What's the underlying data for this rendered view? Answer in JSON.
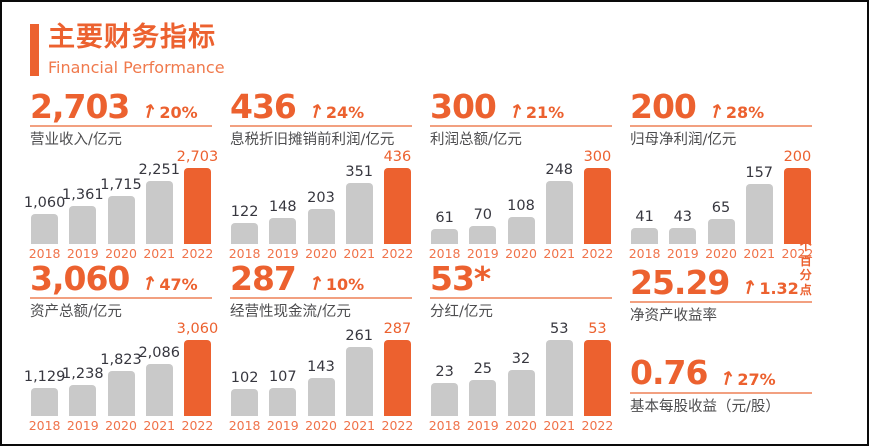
{
  "header": {
    "title": "主要财务指标",
    "subtitle": "Financial Performance"
  },
  "icons": {
    "up_arrow": "↑"
  },
  "colors": {
    "accent": "#EC612F",
    "accent_sub": "#F0794C",
    "rule": "#F2A080",
    "bar_gray": "#C9C9C9",
    "value_dark": "#37373F",
    "label_dark": "#4D4D4F",
    "year_orange": "#F0734B"
  },
  "chart_data": [
    {
      "type": "bar",
      "headline": "2,703",
      "change": "20%",
      "change_suffix": "",
      "title": "营业收入/亿元",
      "xlabel": "",
      "ylabel": "",
      "categories": [
        "2018",
        "2019",
        "2020",
        "2021",
        "2022"
      ],
      "values": [
        1060,
        1361,
        1715,
        2251,
        2703
      ],
      "value_labels": [
        "1,060",
        "1,361",
        "1,715",
        "2,251",
        "2,703"
      ],
      "highlight_index": 4,
      "legend": "none",
      "grid": "off"
    },
    {
      "type": "bar",
      "headline": "436",
      "change": "24%",
      "change_suffix": "",
      "title": "息税折旧摊销前利润/亿元",
      "xlabel": "",
      "ylabel": "",
      "categories": [
        "2018",
        "2019",
        "2020",
        "2021",
        "2022"
      ],
      "values": [
        122,
        148,
        203,
        351,
        436
      ],
      "value_labels": [
        "122",
        "148",
        "203",
        "351",
        "436"
      ],
      "highlight_index": 4,
      "legend": "none",
      "grid": "off"
    },
    {
      "type": "bar",
      "headline": "300",
      "change": "21%",
      "change_suffix": "",
      "title": "利润总额/亿元",
      "xlabel": "",
      "ylabel": "",
      "categories": [
        "2018",
        "2019",
        "2020",
        "2021",
        "2022"
      ],
      "values": [
        61,
        70,
        108,
        248,
        300
      ],
      "value_labels": [
        "61",
        "70",
        "108",
        "248",
        "300"
      ],
      "highlight_index": 4,
      "legend": "none",
      "grid": "off"
    },
    {
      "type": "bar",
      "headline": "200",
      "change": "28%",
      "change_suffix": "",
      "title": "归母净利润/亿元",
      "xlabel": "",
      "ylabel": "",
      "categories": [
        "2018",
        "2019",
        "2020",
        "2021",
        "2022"
      ],
      "values": [
        41,
        43,
        65,
        157,
        200
      ],
      "value_labels": [
        "41",
        "43",
        "65",
        "157",
        "200"
      ],
      "highlight_index": 4,
      "legend": "none",
      "grid": "off"
    },
    {
      "type": "bar",
      "headline": "3,060",
      "change": "47%",
      "change_suffix": "",
      "title": "资产总额/亿元",
      "xlabel": "",
      "ylabel": "",
      "categories": [
        "2018",
        "2019",
        "2020",
        "2021",
        "2022"
      ],
      "values": [
        1129,
        1238,
        1823,
        2086,
        3060
      ],
      "value_labels": [
        "1,129",
        "1,238",
        "1,823",
        "2,086",
        "3,060"
      ],
      "highlight_index": 4,
      "legend": "none",
      "grid": "off"
    },
    {
      "type": "bar",
      "headline": "287",
      "change": "10%",
      "change_suffix": "",
      "title": "经营性现金流/亿元",
      "xlabel": "",
      "ylabel": "",
      "categories": [
        "2018",
        "2019",
        "2020",
        "2021",
        "2022"
      ],
      "values": [
        102,
        107,
        143,
        261,
        287
      ],
      "value_labels": [
        "102",
        "107",
        "143",
        "261",
        "287"
      ],
      "highlight_index": 4,
      "legend": "none",
      "grid": "off"
    },
    {
      "type": "bar",
      "headline": "53*",
      "change": "",
      "change_suffix": "",
      "title": "分红/亿元",
      "xlabel": "",
      "ylabel": "",
      "categories": [
        "2018",
        "2019",
        "2020",
        "2021",
        "2022"
      ],
      "values": [
        23,
        25,
        32,
        53,
        53
      ],
      "value_labels": [
        "23",
        "25",
        "32",
        "53",
        "53"
      ],
      "highlight_index": 4,
      "legend": "none",
      "grid": "off"
    }
  ],
  "kpis": [
    {
      "headline": "25.29",
      "change": "1.32",
      "change_suffix": "个百分点",
      "label": "净资产收益率"
    },
    {
      "headline": "0.76",
      "change": "27%",
      "change_suffix": "",
      "label": "基本每股收益（元/股）"
    }
  ]
}
